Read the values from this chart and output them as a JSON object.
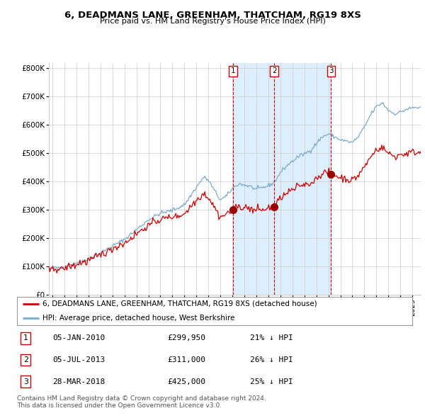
{
  "title": "6, DEADMANS LANE, GREENHAM, THATCHAM, RG19 8XS",
  "subtitle": "Price paid vs. HM Land Registry's House Price Index (HPI)",
  "legend_line1": "6, DEADMANS LANE, GREENHAM, THATCHAM, RG19 8XS (detached house)",
  "legend_line2": "HPI: Average price, detached house, West Berkshire",
  "sale_label1": "1",
  "sale_date1": "05-JAN-2010",
  "sale_price1": "£299,950",
  "sale_pct1": "21% ↓ HPI",
  "sale_label2": "2",
  "sale_date2": "05-JUL-2013",
  "sale_price2": "£311,000",
  "sale_pct2": "26% ↓ HPI",
  "sale_label3": "3",
  "sale_date3": "28-MAR-2018",
  "sale_price3": "£425,000",
  "sale_pct3": "25% ↓ HPI",
  "footnote1": "Contains HM Land Registry data © Crown copyright and database right 2024.",
  "footnote2": "This data is licensed under the Open Government Licence v3.0.",
  "red_color": "#cc0000",
  "blue_color": "#7aaacc",
  "blue_fill": "#ddeeff",
  "background": "#ffffff",
  "grid_color": "#cccccc",
  "vline_color": "#cc0000",
  "marker_color": "#990000",
  "sale1_x": 2010.04,
  "sale1_y": 299950,
  "sale2_x": 2013.5,
  "sale2_y": 311000,
  "sale3_x": 2018.23,
  "sale3_y": 425000,
  "ylim": [
    0,
    820000
  ],
  "xlim_start": 1994.7,
  "xlim_end": 2025.7
}
